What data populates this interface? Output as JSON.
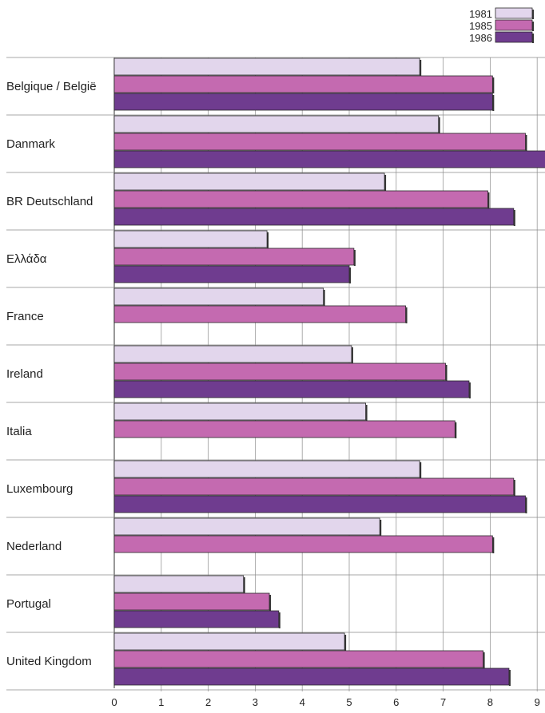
{
  "chart_data": {
    "type": "bar",
    "orientation": "horizontal",
    "categories": [
      "Belgique / België",
      "Danmark",
      "BR Deutschland",
      "Ελλάδα",
      "France",
      "Ireland",
      "Italia",
      "Luxembourg",
      "Nederland",
      "Portugal",
      "United Kingdom"
    ],
    "series": [
      {
        "name": "1981",
        "color": "#e2d6ec",
        "values": [
          6.5,
          6.9,
          5.75,
          3.25,
          4.45,
          5.05,
          5.35,
          6.5,
          5.65,
          2.75,
          4.9
        ]
      },
      {
        "name": "1985",
        "color": "#c46ab0",
        "values": [
          8.05,
          8.75,
          7.95,
          5.1,
          6.2,
          7.05,
          7.25,
          8.5,
          8.05,
          3.3,
          7.85
        ]
      },
      {
        "name": "1986",
        "color": "#6f3c8f",
        "values": [
          8.05,
          9.25,
          8.5,
          5.0,
          null,
          7.55,
          null,
          8.75,
          null,
          3.5,
          8.4
        ]
      }
    ],
    "xticks": [
      "0",
      "1",
      "2",
      "3",
      "4",
      "5",
      "6",
      "7",
      "8",
      "9"
    ],
    "xlim": [
      0,
      9.3
    ],
    "grid": "vertical",
    "legend_position": "top-right",
    "title": "",
    "xlabel": "",
    "ylabel": ""
  }
}
